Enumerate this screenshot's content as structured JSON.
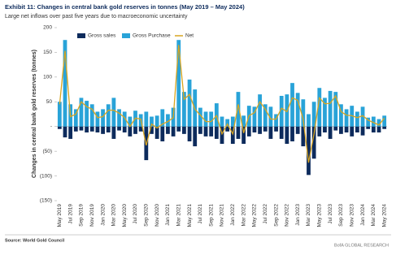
{
  "chart_data": {
    "type": "bar",
    "title": "Exhibit 11: Changes in central bank gold reserves in tonnes (May 2019 – May 2024)",
    "subtitle": "Large net inflows over past five years due to macroeconomic uncertainty",
    "y_label": "Changes in central bank gold reserves (tonnes)",
    "source": "Source: World Gold Council",
    "credit": "BofA GLOBAL RESEARCH",
    "legend": "top",
    "categories": [
      "May 2019",
      null,
      "Jul 2019",
      null,
      "Sep 2019",
      null,
      "Nov 2019",
      null,
      "Jan 2020",
      null,
      "Mar 2020",
      null,
      "May 2020",
      null,
      "Jul 2020",
      null,
      "Sep 2020",
      null,
      "Nov 2020",
      null,
      "Jan 2021",
      null,
      "Mar 2021",
      null,
      "May 2021",
      null,
      "Jul 2021",
      null,
      "Sep 2021",
      null,
      "Nov 2021",
      null,
      "Jan 2022",
      null,
      "Mar 2022",
      null,
      "May 2022",
      null,
      "Jul 2022",
      null,
      "Sep 2022",
      null,
      "Nov 2022",
      null,
      "Jan 2023",
      null,
      "Mar 2023",
      null,
      "May 2023",
      null,
      "Jul 2023",
      null,
      "Sep 2023",
      null,
      "Nov 2023",
      null,
      "Jan 2024",
      null,
      "Mar 2024",
      null,
      "May 2024"
    ],
    "series": [
      {
        "name": "Gross sales",
        "type": "bar",
        "color": "#0d2b5c",
        "values": [
          -5,
          -22,
          -25,
          -10,
          -8,
          -12,
          -10,
          -12,
          -15,
          -12,
          -25,
          -8,
          -12,
          -20,
          -15,
          -10,
          -68,
          -15,
          -25,
          -30,
          -15,
          -20,
          -10,
          -15,
          -30,
          -40,
          -15,
          -20,
          -20,
          -25,
          -35,
          -10,
          -35,
          -25,
          -35,
          -20,
          -12,
          -15,
          -10,
          -25,
          -10,
          -25,
          -35,
          -30,
          -15,
          -40,
          -98,
          -65,
          -20,
          -12,
          -25,
          -8,
          -15,
          -12,
          -20,
          -12,
          -18,
          -5,
          -12,
          -12,
          -5
        ]
      },
      {
        "name": "Gross Purchase",
        "type": "bar",
        "color": "#29a3d8",
        "values": [
          50,
          175,
          45,
          35,
          58,
          52,
          45,
          30,
          35,
          45,
          58,
          35,
          30,
          20,
          32,
          25,
          30,
          20,
          22,
          35,
          25,
          38,
          175,
          70,
          95,
          75,
          38,
          30,
          30,
          47,
          20,
          15,
          20,
          70,
          22,
          42,
          40,
          65,
          45,
          40,
          25,
          62,
          65,
          88,
          68,
          55,
          25,
          50,
          78,
          58,
          72,
          70,
          45,
          35,
          42,
          30,
          40,
          18,
          20,
          15,
          22
        ]
      },
      {
        "name": "Net",
        "type": "line",
        "color": "#d9a520",
        "values": [
          45,
          153,
          20,
          25,
          50,
          40,
          35,
          18,
          20,
          33,
          33,
          27,
          18,
          0,
          17,
          15,
          -38,
          5,
          -3,
          5,
          10,
          18,
          165,
          55,
          65,
          35,
          23,
          10,
          10,
          22,
          -15,
          5,
          -15,
          45,
          -13,
          22,
          28,
          50,
          35,
          15,
          15,
          37,
          30,
          58,
          53,
          15,
          -73,
          -15,
          58,
          46,
          47,
          62,
          30,
          23,
          22,
          18,
          22,
          13,
          8,
          3,
          17
        ]
      }
    ],
    "ylim": [
      -150,
      200
    ],
    "yticks": [
      200,
      150,
      100,
      50,
      {
        "value": 0,
        "label": "-"
      },
      {
        "value": -50,
        "label": "(50)"
      },
      {
        "value": -100,
        "label": "(100)"
      },
      {
        "value": -150,
        "label": "(150)"
      }
    ],
    "grid": false
  }
}
